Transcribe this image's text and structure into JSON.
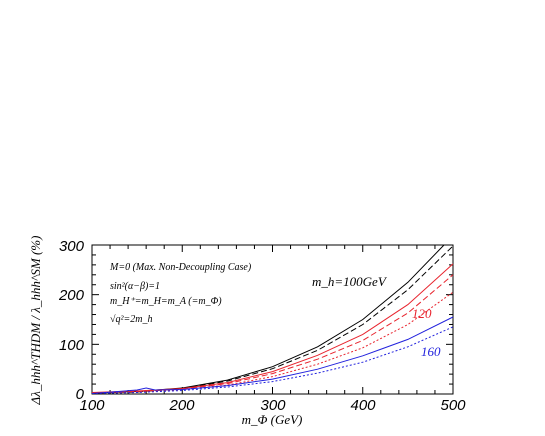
{
  "chart_data": {
    "type": "line",
    "xlabel": "m_Φ (GeV)",
    "ylabel": "Δλ_hhh^THDM / λ_hhh^SM (%)",
    "xlim": [
      100,
      500
    ],
    "ylim": [
      0,
      300
    ],
    "xticks": [
      "100",
      "200",
      "300",
      "400",
      "500"
    ],
    "yticks": [
      "0",
      "100",
      "200",
      "300"
    ],
    "grid": false,
    "annotations": {
      "line1": "M=0 (Max. Non-Decoupling Case)",
      "line2": "sin²(α−β)=1",
      "line3": "m_H⁺=m_H=m_A (=m_Φ)",
      "line4": "√q²=2m_h",
      "mh100": "m_h=100GeV",
      "mh120": "120",
      "mh160": "160"
    },
    "colors": {
      "mh100": "#000000",
      "mh120": "#e8242e",
      "mh160": "#2222dd"
    },
    "series": [
      {
        "group": "mh100",
        "style": "solid",
        "x": [
          100,
          150,
          200,
          250,
          300,
          350,
          400,
          450,
          490
        ],
        "y": [
          2,
          5,
          12,
          28,
          55,
          95,
          150,
          225,
          300
        ]
      },
      {
        "group": "mh100",
        "style": "dashed",
        "x": [
          100,
          150,
          200,
          250,
          300,
          350,
          400,
          450,
          500
        ],
        "y": [
          2,
          4,
          11,
          26,
          51,
          88,
          140,
          210,
          298
        ]
      },
      {
        "group": "mh120",
        "style": "solid",
        "x": [
          100,
          150,
          200,
          250,
          300,
          350,
          400,
          450,
          500
        ],
        "y": [
          3,
          6,
          11,
          23,
          45,
          78,
          120,
          180,
          262
        ]
      },
      {
        "group": "mh120",
        "style": "dashed",
        "x": [
          100,
          150,
          200,
          250,
          300,
          350,
          400,
          450,
          500
        ],
        "y": [
          2,
          5,
          10,
          21,
          41,
          70,
          108,
          163,
          240
        ]
      },
      {
        "group": "mh120",
        "style": "dotted",
        "x": [
          100,
          150,
          200,
          250,
          300,
          350,
          400,
          450,
          500
        ],
        "y": [
          2,
          4,
          9,
          18,
          35,
          60,
          93,
          140,
          205
        ]
      },
      {
        "group": "mh160",
        "style": "solid",
        "x": [
          100,
          150,
          160,
          170,
          200,
          250,
          300,
          350,
          400,
          450,
          500
        ],
        "y": [
          1,
          8,
          12,
          8,
          9,
          17,
          30,
          50,
          77,
          110,
          155
        ]
      },
      {
        "group": "mh160",
        "style": "dotted",
        "x": [
          100,
          150,
          200,
          250,
          300,
          350,
          400,
          450,
          500
        ],
        "y": [
          1,
          3,
          7,
          14,
          25,
          42,
          64,
          95,
          135
        ]
      }
    ]
  }
}
